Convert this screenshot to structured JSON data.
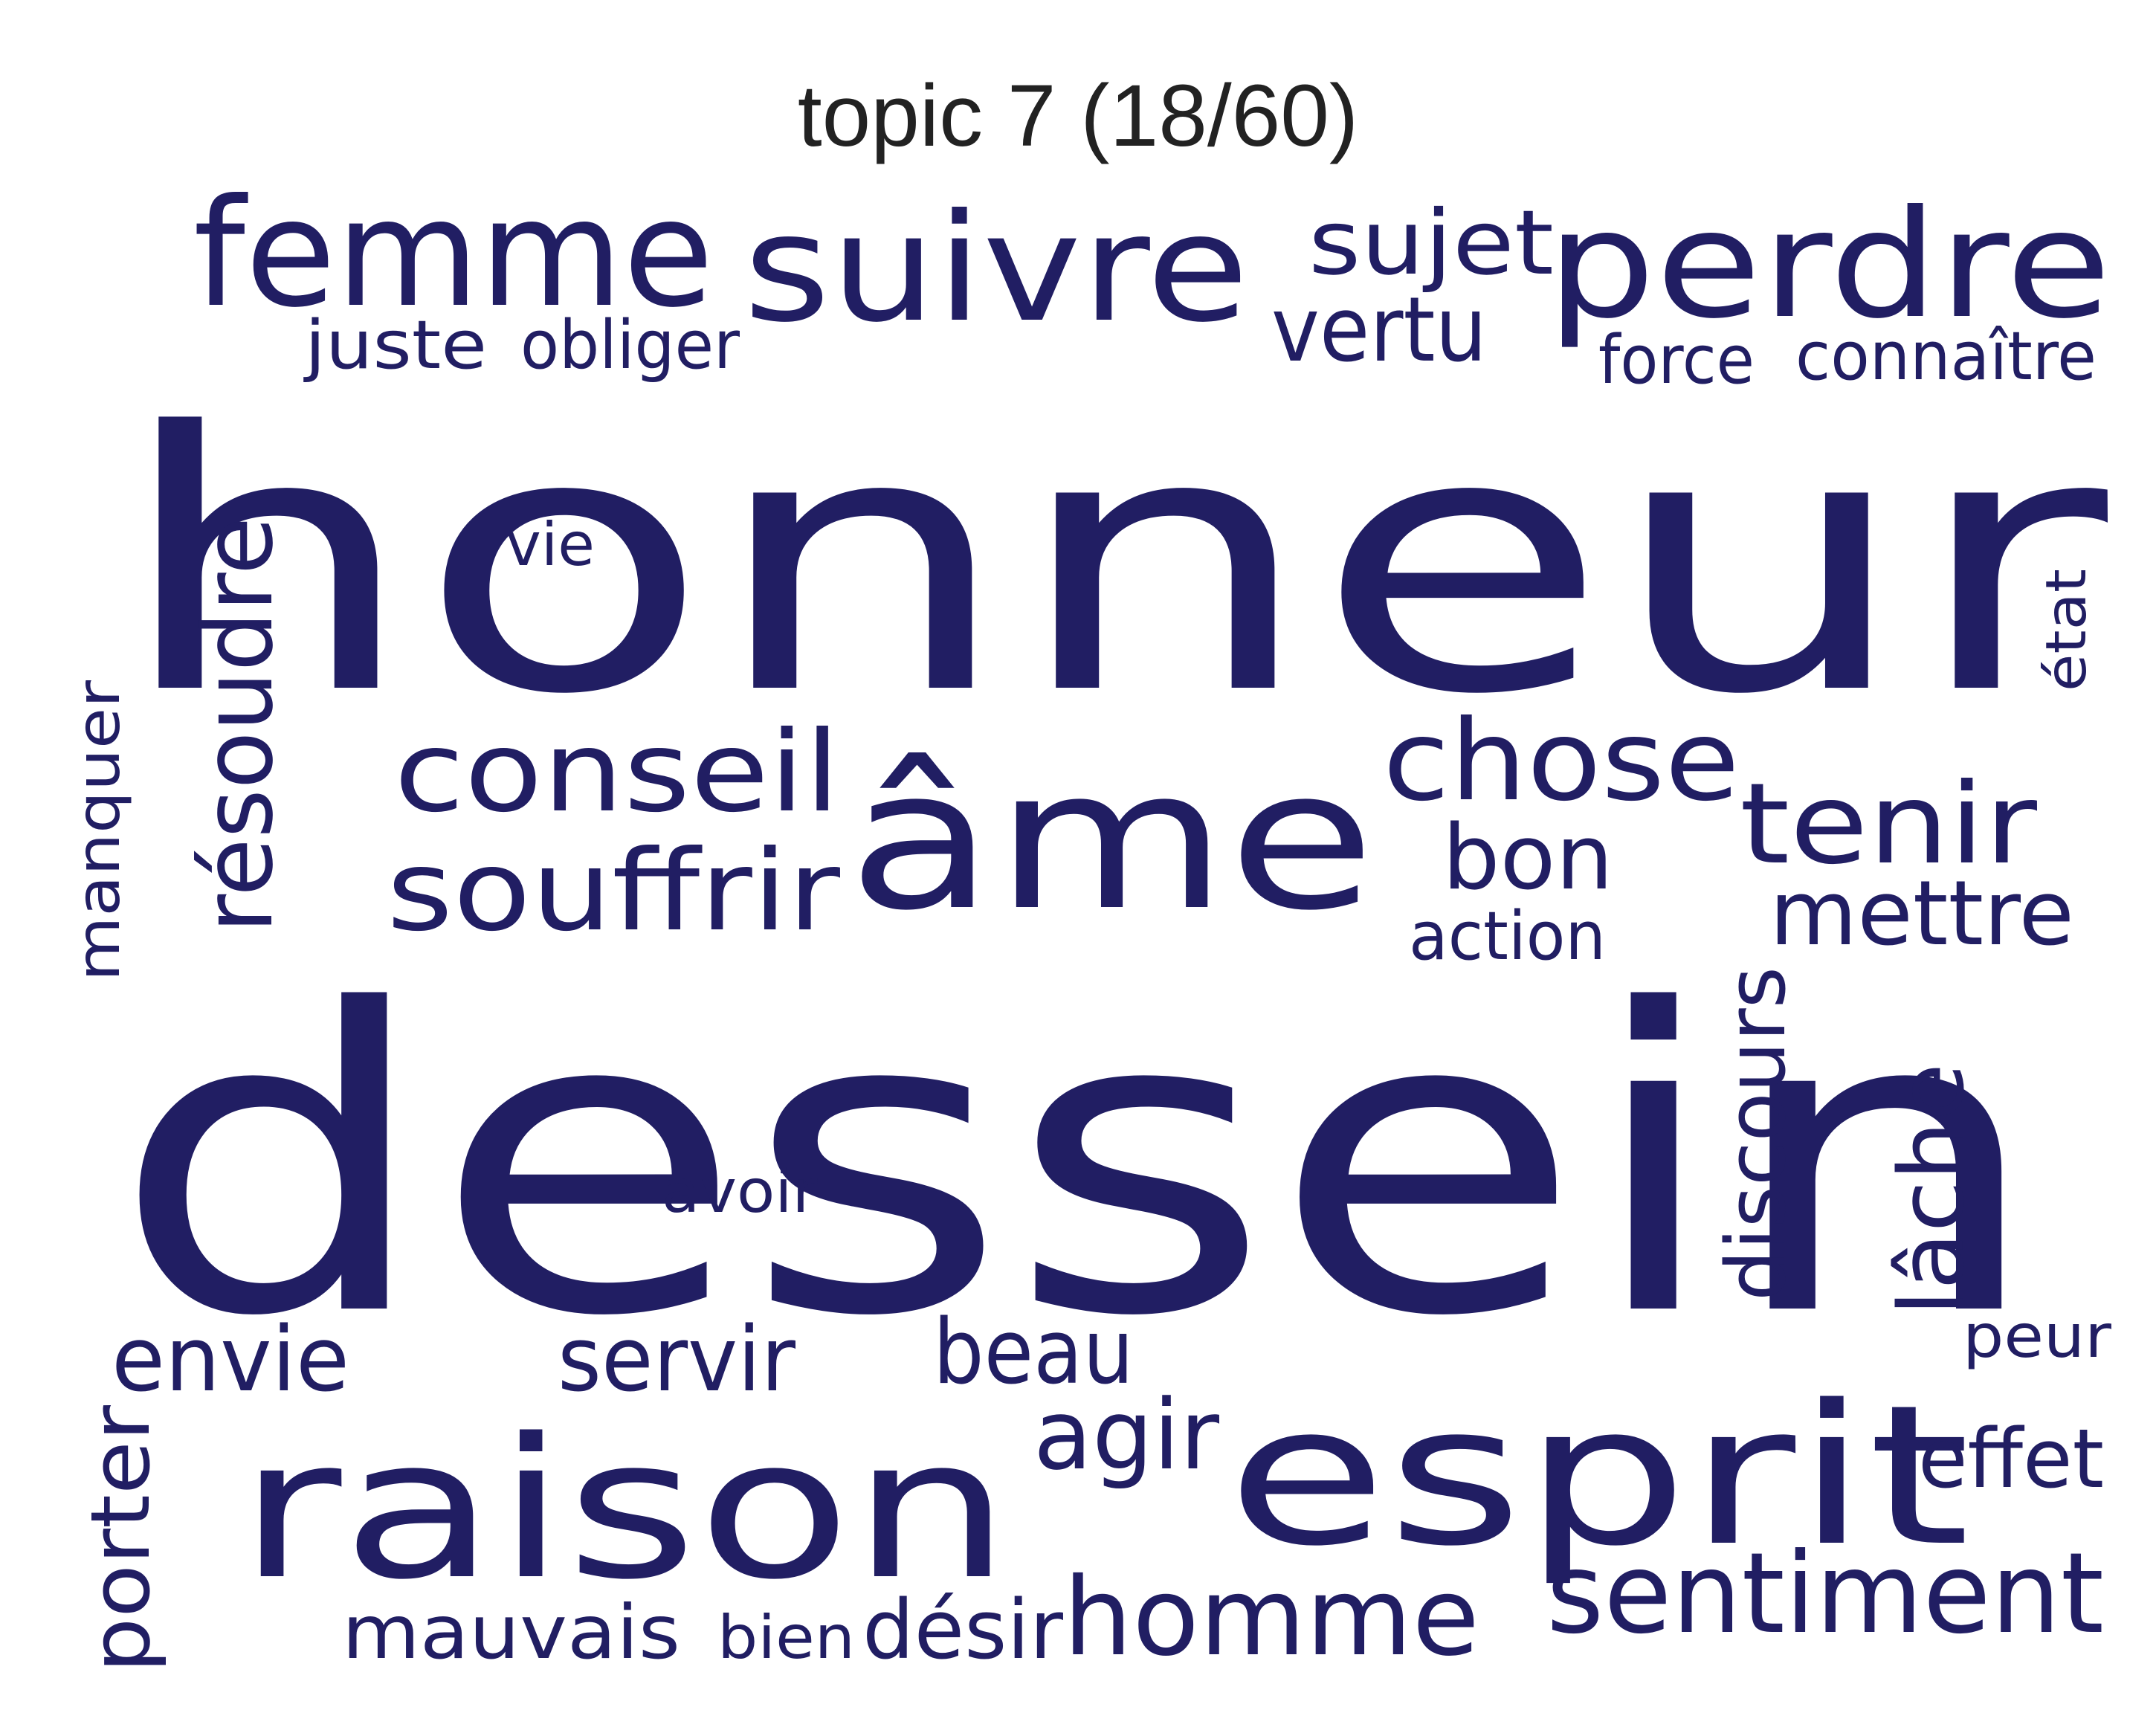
{
  "title": "topic 7 (18/60)",
  "colors": {
    "background": "#ffffff",
    "word": "#211e63",
    "title": "#222222"
  },
  "words": [
    {
      "text": "dessein",
      "rank": 1,
      "vertical": false
    },
    {
      "text": "honneur",
      "rank": 2,
      "vertical": false
    },
    {
      "text": "esprit",
      "rank": 3,
      "vertical": false
    },
    {
      "text": "raison",
      "rank": 4,
      "vertical": false
    },
    {
      "text": "âme",
      "rank": 5,
      "vertical": false
    },
    {
      "text": "suivre",
      "rank": 6,
      "vertical": false
    },
    {
      "text": "femme",
      "rank": 7,
      "vertical": false
    },
    {
      "text": "perdre",
      "rank": 8,
      "vertical": false
    },
    {
      "text": "conseil",
      "rank": 9,
      "vertical": false
    },
    {
      "text": "souffrir",
      "rank": 10,
      "vertical": false
    },
    {
      "text": "chose",
      "rank": 11,
      "vertical": false
    },
    {
      "text": "tenir",
      "rank": 12,
      "vertical": false
    },
    {
      "text": "sentiment",
      "rank": 13,
      "vertical": false
    },
    {
      "text": "homme",
      "rank": 14,
      "vertical": false
    },
    {
      "text": "résoudre",
      "rank": 15,
      "vertical": true
    },
    {
      "text": "mettre",
      "rank": 16,
      "vertical": false
    },
    {
      "text": "discours",
      "rank": 17,
      "vertical": true
    },
    {
      "text": "lâche",
      "rank": 18,
      "vertical": true
    },
    {
      "text": "sujet",
      "rank": 19,
      "vertical": false
    },
    {
      "text": "vertu",
      "rank": 20,
      "vertical": false
    },
    {
      "text": "bon",
      "rank": 21,
      "vertical": false
    },
    {
      "text": "agir",
      "rank": 22,
      "vertical": false
    },
    {
      "text": "envie",
      "rank": 23,
      "vertical": false
    },
    {
      "text": "servir",
      "rank": 24,
      "vertical": false
    },
    {
      "text": "beau",
      "rank": 25,
      "vertical": false
    },
    {
      "text": "porter",
      "rank": 26,
      "vertical": true
    },
    {
      "text": "effet",
      "rank": 27,
      "vertical": false
    },
    {
      "text": "mauvais",
      "rank": 28,
      "vertical": false
    },
    {
      "text": "désir",
      "rank": 29,
      "vertical": false
    },
    {
      "text": "juste",
      "rank": 30,
      "vertical": false
    },
    {
      "text": "obliger",
      "rank": 31,
      "vertical": false
    },
    {
      "text": "force",
      "rank": 32,
      "vertical": false
    },
    {
      "text": "connaître",
      "rank": 33,
      "vertical": false
    },
    {
      "text": "action",
      "rank": 34,
      "vertical": false
    },
    {
      "text": "manquer",
      "rank": 35,
      "vertical": true
    },
    {
      "text": "avoir",
      "rank": 36,
      "vertical": false
    },
    {
      "text": "bien",
      "rank": 37,
      "vertical": false
    },
    {
      "text": "peur",
      "rank": 38,
      "vertical": false
    },
    {
      "text": "vie",
      "rank": 39,
      "vertical": false
    },
    {
      "text": "état",
      "rank": 40,
      "vertical": true
    }
  ]
}
